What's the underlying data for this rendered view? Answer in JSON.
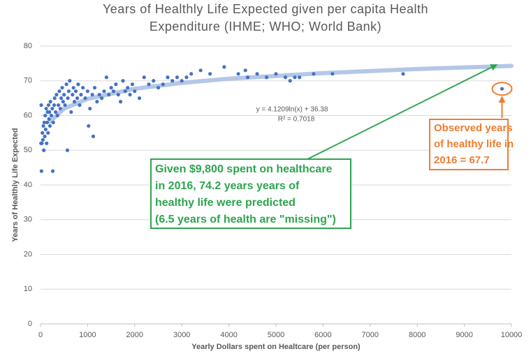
{
  "chart_data": {
    "type": "scatter",
    "title": [
      "Years of Healthly Life Expected given per capita Health",
      "Expenditure (IHME; WHO; World Bank)"
    ],
    "x_label": "Yearly Dollars spent on Healtcare (per person)",
    "y_label": "Years of Healthly Life Expected",
    "xlim": [
      0,
      10000
    ],
    "ylim": [
      0,
      80
    ],
    "xticks": [
      0,
      1000,
      2000,
      3000,
      4000,
      5000,
      6000,
      7000,
      8000,
      9000,
      10000
    ],
    "yticks": [
      0,
      10,
      20,
      30,
      40,
      50,
      60,
      70,
      80
    ],
    "grid": true,
    "color": "#4472c4",
    "x": [
      10,
      15,
      20,
      30,
      40,
      50,
      60,
      70,
      80,
      90,
      100,
      110,
      120,
      130,
      140,
      150,
      160,
      170,
      180,
      190,
      200,
      210,
      230,
      250,
      260,
      270,
      290,
      300,
      320,
      340,
      360,
      380,
      400,
      420,
      440,
      460,
      480,
      500,
      520,
      550,
      570,
      580,
      600,
      620,
      650,
      680,
      700,
      720,
      750,
      780,
      800,
      830,
      860,
      900,
      950,
      1000,
      1020,
      1050,
      1100,
      1120,
      1150,
      1200,
      1250,
      1300,
      1350,
      1400,
      1450,
      1500,
      1550,
      1600,
      1650,
      1700,
      1750,
      1800,
      1850,
      1900,
      1950,
      2000,
      2100,
      2200,
      2300,
      2400,
      2500,
      2600,
      2700,
      2800,
      2900,
      3000,
      3100,
      3200,
      3400,
      3600,
      3900,
      4200,
      4350,
      4400,
      4600,
      4800,
      5000,
      5200,
      5300,
      5400,
      5500,
      5800,
      6200,
      7700,
      9800
    ],
    "values": [
      52,
      63,
      44,
      52,
      55,
      53,
      57,
      50,
      58,
      54,
      60,
      56,
      62,
      52,
      58,
      61,
      55,
      63,
      59,
      61,
      57,
      64,
      60,
      62,
      44,
      58,
      63,
      65,
      61,
      66,
      60,
      63,
      67,
      62,
      65,
      68,
      64,
      66,
      63,
      69,
      50,
      65,
      67,
      70,
      61,
      66,
      68,
      64,
      67,
      65,
      69,
      63,
      66,
      68,
      65,
      67,
      57,
      62,
      66,
      54,
      68,
      64,
      66,
      65,
      67,
      71,
      66,
      68,
      67,
      69,
      66,
      64,
      70,
      67,
      68,
      66,
      69,
      67,
      65,
      71,
      69,
      70,
      68,
      69,
      71,
      70,
      71,
      70,
      71,
      72,
      73,
      72,
      74,
      72,
      73,
      71,
      72,
      71,
      72,
      71,
      70,
      71,
      71,
      72,
      72,
      72,
      67.7
    ],
    "trendline": {
      "equation": "y = 4.1209ln(x) + 36.38",
      "r_squared": "R² = 0.7018",
      "color": "#b4c7e7",
      "x": [
        200,
        500,
        1000,
        2000,
        3000,
        4000,
        6000,
        8000,
        10000
      ],
      "values": [
        58.2,
        62.0,
        64.8,
        67.7,
        69.4,
        70.6,
        72.2,
        73.4,
        74.3
      ]
    },
    "annotations": {
      "prediction": {
        "color": "#2ea44f",
        "lines": [
          "Given $9,800 spent on healthcare",
          "in 2016, 74.2 years years of",
          "healthy life were predicted",
          "(6.5 years of health are \"missing\")"
        ]
      },
      "observed": {
        "color": "#ed7d31",
        "lines": [
          "Observed years",
          "of healthy life in",
          "2016 = 67.7"
        ]
      }
    }
  }
}
